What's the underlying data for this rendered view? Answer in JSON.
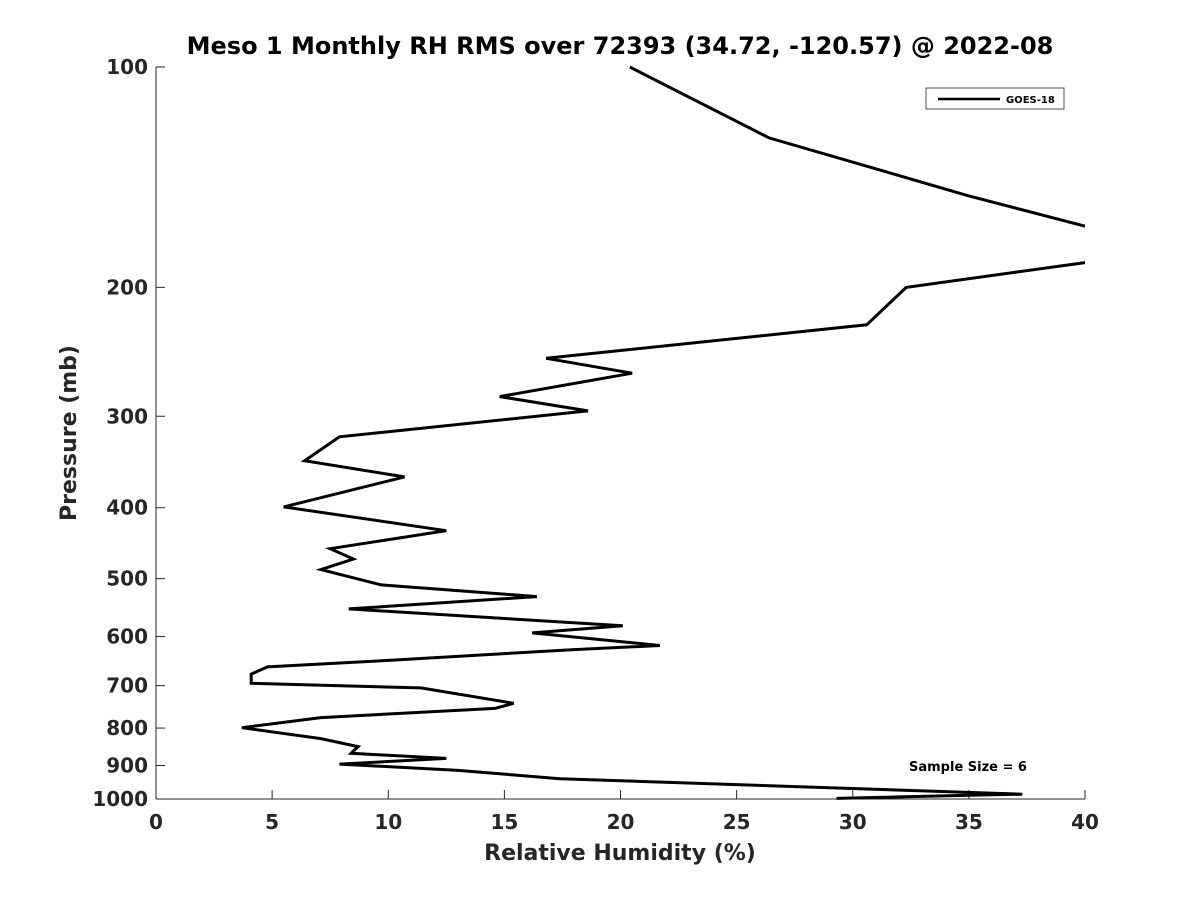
{
  "chart_data": {
    "type": "line",
    "title": "Meso 1 Monthly RH RMS over 72393 (34.72, -120.57) @ 2022-08",
    "xlabel": "Relative Humidity (%)",
    "ylabel": "Pressure (mb)",
    "xlim": [
      0,
      40
    ],
    "ylim": [
      100,
      1000
    ],
    "y_scale": "log",
    "y_direction": "reversed",
    "grid": false,
    "legend_position": "top-right",
    "x_ticks": [
      0,
      5,
      10,
      15,
      20,
      25,
      30,
      35,
      40
    ],
    "x_tick_labels": [
      "0",
      "5",
      "10",
      "15",
      "20",
      "25",
      "30",
      "35",
      "40"
    ],
    "y_ticks": [
      100,
      200,
      300,
      400,
      500,
      600,
      700,
      800,
      900,
      1000
    ],
    "y_tick_labels": [
      "100",
      "200",
      "300",
      "400",
      "500",
      "600",
      "700",
      "800",
      "900",
      "1000"
    ],
    "annotation": "Sample Size = 6",
    "series": [
      {
        "name": "GOES-18",
        "color": "#000000",
        "segments": [
          {
            "x": [
              20.4,
              26.4,
              35,
              40
            ],
            "y": [
              100,
              125,
              150,
              165
            ]
          },
          {
            "x": [
              40,
              32.3,
              30.6,
              16.8,
              20.5,
              14.8,
              18.6,
              7.9,
              6.4,
              10.7,
              5.5,
              12.5,
              7.5,
              8.5,
              7.1,
              9.7,
              16.4,
              8.3,
              20.1,
              16.2,
              21.7,
              18,
              10.2,
              4.8,
              4.1,
              4.1,
              11.4,
              15.4,
              14.6,
              7.1,
              3.7,
              7.1,
              8.7,
              8.4,
              12.5,
              7.9,
              13,
              17.4,
              37.3,
              35,
              29.3
            ],
            "y": [
              185,
              200,
              225,
              250,
              262,
              282,
              295,
              320,
              345,
              363,
              399,
              430,
              455,
              470,
              486,
              510,
              529,
              550,
              580,
              593,
              617,
              625,
              646,
              660,
              675,
              695,
              705,
              740,
              752,
              774,
              799,
              827,
              848,
              866,
              880,
              896,
              914,
              938,
              985,
              988,
              998
            ]
          }
        ]
      }
    ]
  }
}
